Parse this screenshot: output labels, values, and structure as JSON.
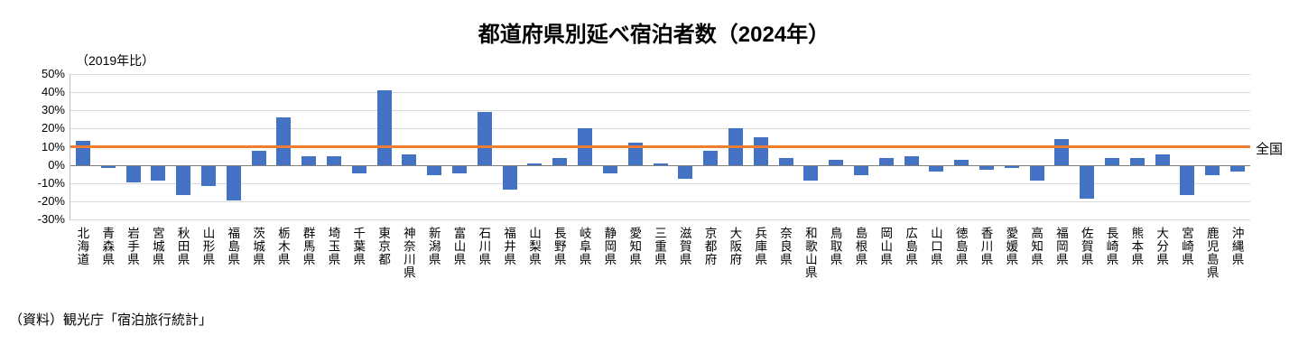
{
  "title": "都道府県別延べ宿泊者数（2024年）",
  "axis_note": "（2019年比）",
  "national_label": "全国",
  "source": "（資料）観光庁「宿泊旅行統計」",
  "colors": {
    "bar": "#4472c4",
    "reference_line": "#ed7d31",
    "grid": "#d9d9d9",
    "zero_axis": "#7f7f7f"
  },
  "chart_data": {
    "type": "bar",
    "title": "都道府県別延べ宿泊者数（2024年）",
    "ylabel": "（2019年比）",
    "ylim": [
      -30,
      50
    ],
    "ytick_step": 10,
    "ytick_suffix": "%",
    "grid": true,
    "legend_position": "none",
    "reference_line": {
      "label": "全国",
      "value": 10
    },
    "categories": [
      "北海道",
      "青森県",
      "岩手県",
      "宮城県",
      "秋田県",
      "山形県",
      "福島県",
      "茨城県",
      "栃木県",
      "群馬県",
      "埼玉県",
      "千葉県",
      "東京都",
      "神奈川県",
      "新潟県",
      "富山県",
      "石川県",
      "福井県",
      "山梨県",
      "長野県",
      "岐阜県",
      "静岡県",
      "愛知県",
      "三重県",
      "滋賀県",
      "京都府",
      "大阪府",
      "兵庫県",
      "奈良県",
      "和歌山県",
      "鳥取県",
      "島根県",
      "岡山県",
      "広島県",
      "山口県",
      "徳島県",
      "香川県",
      "愛媛県",
      "高知県",
      "福岡県",
      "佐賀県",
      "長崎県",
      "熊本県",
      "大分県",
      "宮崎県",
      "鹿児島県",
      "沖縄県"
    ],
    "values": [
      13,
      -1,
      -9,
      -8,
      -16,
      -11,
      -19,
      8,
      26,
      5,
      5,
      -4,
      41,
      6,
      -5,
      -4,
      29,
      -13,
      1,
      4,
      20,
      -4,
      12,
      1,
      -7,
      8,
      20,
      15,
      4,
      -8,
      3,
      -5,
      4,
      5,
      -3,
      3,
      -2,
      -1,
      -8,
      14,
      -18,
      4,
      4,
      6,
      -16,
      -5,
      -3
    ]
  }
}
